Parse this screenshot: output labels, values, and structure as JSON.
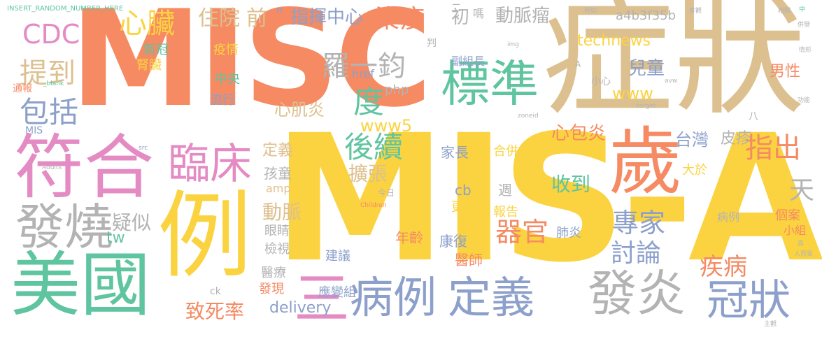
{
  "colors": {
    "orange": "#f58a63",
    "tan": "#ddc08f",
    "yellow": "#fbd341",
    "pink": "#e48bc4",
    "green": "#5fc4a0",
    "blue": "#8da0cb",
    "gray": "#b3b3b3",
    "lime": "#a7d74a",
    "background": "#ffffff"
  },
  "words": [
    {
      "id": "w-misc",
      "text": "MISC",
      "color": "orange"
    },
    {
      "id": "w-zhengzhuang",
      "text": "症狀",
      "color": "tan"
    },
    {
      "id": "w-mis-a",
      "text": "MIS-A",
      "color": "yellow"
    },
    {
      "id": "w-fuhe",
      "text": "符合",
      "color": "pink"
    },
    {
      "id": "w-li",
      "text": "例",
      "color": "yellow"
    },
    {
      "id": "w-meiguo",
      "text": "美國",
      "color": "green"
    },
    {
      "id": "w-sui",
      "text": "歲",
      "color": "orange"
    },
    {
      "id": "w-biaozhun",
      "text": "標準",
      "color": "green"
    },
    {
      "id": "w-linchuang",
      "text": "臨床",
      "color": "pink"
    },
    {
      "id": "w-fashao",
      "text": "發燒",
      "color": "gray"
    },
    {
      "id": "w-bingli",
      "text": "病例",
      "color": "blue"
    },
    {
      "id": "w-dingyi",
      "text": "定義",
      "color": "blue"
    },
    {
      "id": "w-fayan",
      "text": "發炎",
      "color": "gray"
    },
    {
      "id": "w-guanzhuang",
      "text": "冠狀",
      "color": "blue"
    },
    {
      "id": "w-san",
      "text": "三",
      "color": "pink"
    },
    {
      "id": "w-baokuo",
      "text": "包括",
      "color": "blue"
    },
    {
      "id": "w-tidao",
      "text": "提到",
      "color": "tan"
    },
    {
      "id": "w-cdc",
      "text": "CDC",
      "color": "pink"
    },
    {
      "id": "w-xinzang",
      "text": "心臟",
      "color": "yellow"
    },
    {
      "id": "w-zhuyuan",
      "text": "住院",
      "color": "tan"
    },
    {
      "id": "w-qian",
      "text": "前",
      "color": "tan"
    },
    {
      "id": "w-ranyi",
      "text": "染疫",
      "color": "orange"
    },
    {
      "id": "w-luoyijun",
      "text": "羅一鈞",
      "color": "gray"
    },
    {
      "id": "w-zhihui",
      "text": "指揮中心",
      "color": "blue"
    },
    {
      "id": "w-chu",
      "text": "初",
      "color": "gray"
    },
    {
      "id": "w-dongmailiu",
      "text": "動脈瘤",
      "color": "gray"
    },
    {
      "id": "w-du",
      "text": "度",
      "color": "green"
    },
    {
      "id": "w-houxu",
      "text": "後續",
      "color": "green"
    },
    {
      "id": "w-www5",
      "text": "www5",
      "color": "yellow"
    },
    {
      "id": "w-xinjiyan",
      "text": "心肌炎",
      "color": "tan"
    },
    {
      "id": "w-qiguan",
      "text": "器官",
      "color": "orange"
    },
    {
      "id": "w-zhuanjia",
      "text": "專家",
      "color": "blue"
    },
    {
      "id": "w-taolun",
      "text": "討論",
      "color": "blue"
    },
    {
      "id": "w-jibing",
      "text": "疾病",
      "color": "orange"
    },
    {
      "id": "w-zhichu",
      "text": "指出",
      "color": "orange"
    },
    {
      "id": "w-tian",
      "text": "天",
      "color": "gray"
    },
    {
      "id": "w-technews",
      "text": "technews",
      "color": "yellow"
    },
    {
      "id": "w-xinbaoyan",
      "text": "心包炎",
      "color": "orange"
    },
    {
      "id": "w-taiwan",
      "text": "台灣",
      "color": "blue"
    },
    {
      "id": "w-pizhen",
      "text": "皮疹",
      "color": "gray"
    },
    {
      "id": "w-ertong",
      "text": "兒童",
      "color": "blue"
    },
    {
      "id": "w-nanxing",
      "text": "男性",
      "color": "orange"
    },
    {
      "id": "w-www",
      "text": "www",
      "color": "yellow"
    },
    {
      "id": "w-a4b",
      "text": "a4b3f35b",
      "color": "gray"
    },
    {
      "id": "w-zhidao",
      "text": "致死率",
      "color": "orange"
    },
    {
      "id": "w-delivery",
      "text": "delivery",
      "color": "blue"
    },
    {
      "id": "w-kuozhang",
      "text": "擴張",
      "color": "tan"
    },
    {
      "id": "w-shouda",
      "text": "收到",
      "color": "green"
    },
    {
      "id": "w-dongmai",
      "text": "動脈",
      "color": "tan"
    },
    {
      "id": "w-yisi",
      "text": "疑似",
      "color": "gray"
    },
    {
      "id": "w-xinguan",
      "text": "新冠",
      "color": "green"
    },
    {
      "id": "w-shenzang",
      "text": "腎臟",
      "color": "yellow"
    },
    {
      "id": "w-yiqing",
      "text": "疫情",
      "color": "yellow"
    },
    {
      "id": "w-zhongyang",
      "text": "中央",
      "color": "green"
    },
    {
      "id": "w-liuxing",
      "text": "流行",
      "color": "blue"
    },
    {
      "id": "w-fubuzhang",
      "text": "副組長",
      "color": "blue"
    },
    {
      "id": "w-php",
      "text": "php",
      "color": "gray"
    },
    {
      "id": "w-href",
      "text": "href",
      "color": "blue"
    },
    {
      "id": "w-dingyi2",
      "text": "定義",
      "color": "tan"
    },
    {
      "id": "w-haitong",
      "text": "孩童",
      "color": "gray"
    },
    {
      "id": "w-amp",
      "text": "amp",
      "color": "tan"
    },
    {
      "id": "w-jiazhang",
      "text": "家長",
      "color": "blue"
    },
    {
      "id": "w-hebing",
      "text": "合併",
      "color": "yellow"
    },
    {
      "id": "w-cb",
      "text": "cb",
      "color": "blue"
    },
    {
      "id": "w-zhou",
      "text": "週",
      "color": "gray"
    },
    {
      "id": "w-baogao",
      "text": "報告",
      "color": "yellow"
    },
    {
      "id": "w-dayu",
      "text": "大於",
      "color": "yellow"
    },
    {
      "id": "w-gean",
      "text": "個案",
      "color": "orange"
    },
    {
      "id": "w-xiaozu",
      "text": "小組",
      "color": "orange"
    },
    {
      "id": "w-bingli2",
      "text": "病例",
      "color": "gray"
    },
    {
      "id": "w-feiyan",
      "text": "肺炎",
      "color": "blue"
    },
    {
      "id": "w-kangfu",
      "text": "康復",
      "color": "blue"
    },
    {
      "id": "w-yishi",
      "text": "醫師",
      "color": "orange"
    },
    {
      "id": "w-nianling",
      "text": "年齡",
      "color": "orange"
    },
    {
      "id": "w-yanjing",
      "text": "眼睛",
      "color": "gray"
    },
    {
      "id": "w-jianshi",
      "text": "檢視",
      "color": "gray"
    },
    {
      "id": "w-jianyi",
      "text": "建議",
      "color": "blue"
    },
    {
      "id": "w-yiliao",
      "text": "醫療",
      "color": "gray"
    },
    {
      "id": "w-faxian",
      "text": "發現",
      "color": "orange"
    },
    {
      "id": "w-yingbian",
      "text": "應變組",
      "color": "blue"
    },
    {
      "id": "w-tw",
      "text": "tw",
      "color": "green"
    },
    {
      "id": "w-geng",
      "text": "更",
      "color": "yellow"
    },
    {
      "id": "w-ck",
      "text": "ck",
      "color": "gray"
    },
    {
      "id": "w-insert",
      "text": "INSERT_RANDOM_NUMBER_HERE",
      "color": "green"
    },
    {
      "id": "w-n",
      "text": "n",
      "color": "blue"
    },
    {
      "id": "w-er",
      "text": "二",
      "color": "gray"
    },
    {
      "id": "w-ma",
      "text": "嗎",
      "color": "gray"
    },
    {
      "id": "w-liru",
      "text": "例如",
      "color": "gray"
    },
    {
      "id": "w-kguan",
      "text": "客觀",
      "color": "gray"
    },
    {
      "id": "w-xiangguan",
      "text": "相關",
      "color": "gray"
    },
    {
      "id": "w-zhongjie",
      "text": "中",
      "color": "green"
    },
    {
      "id": "w-xiaoxin",
      "text": "小心",
      "color": "gray"
    },
    {
      "id": "w-a",
      "text": "A",
      "color": "gray"
    },
    {
      "id": "w-img",
      "text": "img",
      "color": "gray"
    },
    {
      "id": "w-pan",
      "text": "判",
      "color": "gray"
    },
    {
      "id": "w-avw",
      "text": "avw",
      "color": "gray"
    },
    {
      "id": "w-target",
      "text": "target",
      "color": "gray"
    },
    {
      "id": "w-zoneid",
      "text": "zoneid",
      "color": "gray"
    },
    {
      "id": "w-blank",
      "text": "_blank",
      "color": "green"
    },
    {
      "id": "w-src",
      "text": "src",
      "color": "blue"
    },
    {
      "id": "w-adults",
      "text": "Adults",
      "color": "gray"
    },
    {
      "id": "w-children",
      "text": "Children",
      "color": "orange"
    },
    {
      "id": "w-mis",
      "text": "MIS",
      "color": "blue"
    },
    {
      "id": "w-tongbao",
      "text": "通報",
      "color": "orange"
    },
    {
      "id": "w-jinri",
      "text": "今日",
      "color": "gray"
    },
    {
      "id": "w-ba",
      "text": "八",
      "color": "gray"
    },
    {
      "id": "w-gao",
      "text": "高",
      "color": "gray"
    },
    {
      "id": "w-renerhuang",
      "text": "人而異",
      "color": "gray"
    },
    {
      "id": "w-zhuyi",
      "text": "主觀",
      "color": "gray"
    },
    {
      "id": "w-gongneng",
      "text": "功能",
      "color": "gray"
    },
    {
      "id": "w-bingbian",
      "text": "併發",
      "color": "gray"
    },
    {
      "id": "w-qingxing",
      "text": "情形",
      "color": "gray"
    }
  ]
}
